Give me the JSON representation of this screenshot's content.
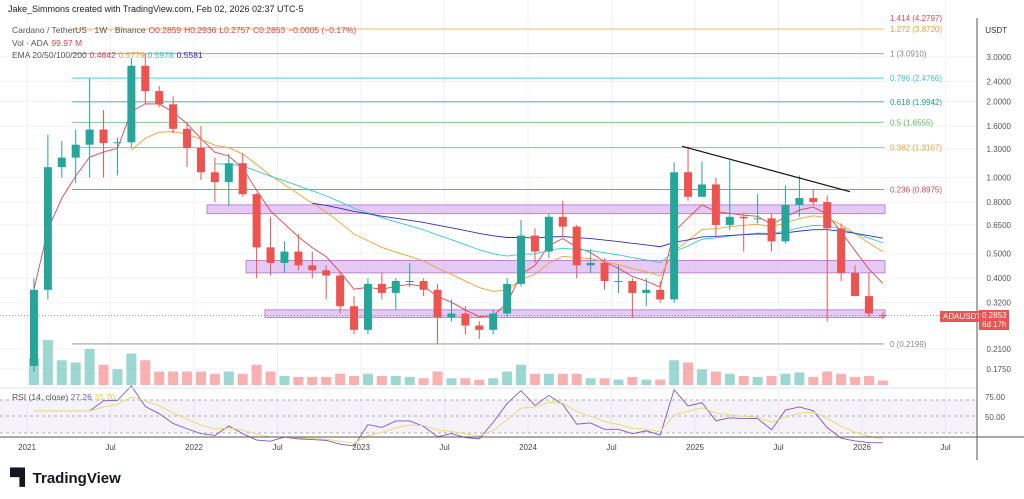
{
  "header": {
    "credit": "Jake_Simmons created with TradingView.com, Feb 02, 2026 02:37 UTC-5"
  },
  "legend": {
    "symbol": "Cardano / TetherUS · 1W · Binance",
    "o": "O0.2859",
    "h": "H0.2936",
    "l": "L0.2757",
    "c": "C0.2853",
    "chg": "−0.0005 (−0.17%)",
    "vol_label": "Vol · ADA",
    "vol_value": "99.97 M",
    "ema_label": "EMA 20/50/100/200",
    "ema20": "0.4642",
    "ema50": "0.5779",
    "ema100": "0.5978",
    "ema200": "0.5581",
    "rsi_label": "RSI (14, close)",
    "rsi_value": "27.26",
    "rsi_ma": "35.70"
  },
  "price_tag": {
    "symbol": "ADAUSDT",
    "price": "0.2853",
    "countdown": "6d 17h"
  },
  "logo": {
    "text": "TradingView"
  },
  "colors": {
    "up": "#26a69a",
    "down": "#ef5350",
    "ema20": "#e0454d",
    "ema50": "#f0a030",
    "ema100": "#37c7d4",
    "ema200": "#2f2fbf",
    "zone": "#d8b4f0",
    "rsi": "#7e57c2"
  },
  "chart_data": {
    "type": "candlestick",
    "interval": "1W (approximated monthly here)",
    "yscale": "log",
    "yunit": "USDT",
    "yticks": [
      "3.0000",
      "2.4000",
      "2.0000",
      "1.6000",
      "1.3000",
      "1.0000",
      "0.8000",
      "0.6500",
      "0.5000",
      "0.4000",
      "0.3200",
      "0.2100",
      "0.1750"
    ],
    "xticks": [
      "2021",
      "Jul",
      "2022",
      "Jul",
      "2023",
      "Jul",
      "2024",
      "Jul",
      "2025",
      "Jul",
      "2026",
      "Jul"
    ],
    "start": "2021-01",
    "ohlc": [
      [
        0.18,
        0.4,
        0.17,
        0.36
      ],
      [
        0.36,
        1.48,
        0.33,
        1.1
      ],
      [
        1.1,
        1.4,
        1.0,
        1.2
      ],
      [
        1.2,
        1.55,
        0.95,
        1.35
      ],
      [
        1.35,
        2.47,
        1.0,
        1.55
      ],
      [
        1.55,
        1.85,
        1.0,
        1.37
      ],
      [
        1.37,
        1.44,
        1.02,
        1.38
      ],
      [
        1.38,
        2.97,
        1.32,
        2.77
      ],
      [
        2.77,
        3.1,
        1.95,
        2.2
      ],
      [
        2.2,
        2.3,
        1.9,
        1.95
      ],
      [
        1.95,
        2.1,
        1.5,
        1.56
      ],
      [
        1.56,
        1.65,
        1.1,
        1.31
      ],
      [
        1.31,
        1.6,
        0.98,
        1.05
      ],
      [
        1.05,
        1.2,
        0.8,
        0.96
      ],
      [
        0.96,
        1.24,
        0.77,
        1.14
      ],
      [
        1.14,
        1.25,
        0.84,
        0.86
      ],
      [
        0.86,
        0.87,
        0.4,
        0.53
      ],
      [
        0.53,
        0.7,
        0.41,
        0.46
      ],
      [
        0.46,
        0.56,
        0.42,
        0.51
      ],
      [
        0.51,
        0.6,
        0.43,
        0.45
      ],
      [
        0.45,
        0.51,
        0.4,
        0.43
      ],
      [
        0.43,
        0.45,
        0.33,
        0.41
      ],
      [
        0.41,
        0.42,
        0.29,
        0.31
      ],
      [
        0.31,
        0.34,
        0.24,
        0.25
      ],
      [
        0.25,
        0.4,
        0.24,
        0.38
      ],
      [
        0.38,
        0.42,
        0.33,
        0.35
      ],
      [
        0.35,
        0.4,
        0.3,
        0.39
      ],
      [
        0.39,
        0.46,
        0.37,
        0.39
      ],
      [
        0.39,
        0.4,
        0.34,
        0.36
      ],
      [
        0.36,
        0.38,
        0.22,
        0.28
      ],
      [
        0.28,
        0.33,
        0.27,
        0.29
      ],
      [
        0.29,
        0.31,
        0.24,
        0.26
      ],
      [
        0.26,
        0.27,
        0.23,
        0.25
      ],
      [
        0.25,
        0.3,
        0.24,
        0.29
      ],
      [
        0.29,
        0.4,
        0.28,
        0.38
      ],
      [
        0.38,
        0.68,
        0.37,
        0.59
      ],
      [
        0.59,
        0.63,
        0.46,
        0.51
      ],
      [
        0.51,
        0.72,
        0.48,
        0.7
      ],
      [
        0.7,
        0.81,
        0.58,
        0.64
      ],
      [
        0.64,
        0.65,
        0.4,
        0.45
      ],
      [
        0.45,
        0.52,
        0.42,
        0.46
      ],
      [
        0.46,
        0.48,
        0.36,
        0.39
      ],
      [
        0.39,
        0.45,
        0.35,
        0.39
      ],
      [
        0.39,
        0.4,
        0.28,
        0.35
      ],
      [
        0.35,
        0.4,
        0.31,
        0.36
      ],
      [
        0.36,
        0.39,
        0.32,
        0.33
      ],
      [
        0.33,
        1.15,
        0.32,
        1.05
      ],
      [
        1.05,
        1.33,
        0.81,
        0.84
      ],
      [
        0.84,
        1.16,
        0.85,
        0.94
      ],
      [
        0.94,
        1.0,
        0.58,
        0.65
      ],
      [
        0.65,
        1.17,
        0.62,
        0.7
      ],
      [
        0.7,
        0.72,
        0.51,
        0.69
      ],
      [
        0.69,
        0.86,
        0.66,
        0.69
      ],
      [
        0.69,
        0.72,
        0.51,
        0.56
      ],
      [
        0.56,
        0.93,
        0.55,
        0.78
      ],
      [
        0.78,
        1.02,
        0.7,
        0.83
      ],
      [
        0.83,
        0.9,
        0.78,
        0.8
      ],
      [
        0.8,
        0.85,
        0.27,
        0.63
      ],
      [
        0.63,
        0.66,
        0.39,
        0.42
      ],
      [
        0.42,
        0.45,
        0.34,
        0.34
      ],
      [
        0.34,
        0.42,
        0.28,
        0.29
      ],
      [
        0.2859,
        0.2936,
        0.2757,
        0.2853
      ]
    ],
    "volume": [
      60,
      100,
      55,
      50,
      80,
      45,
      35,
      70,
      55,
      30,
      30,
      30,
      30,
      25,
      30,
      25,
      45,
      30,
      20,
      18,
      18,
      18,
      25,
      20,
      25,
      20,
      20,
      18,
      15,
      30,
      15,
      15,
      12,
      15,
      30,
      45,
      25,
      25,
      25,
      25,
      15,
      15,
      12,
      18,
      12,
      12,
      55,
      50,
      35,
      30,
      25,
      20,
      18,
      20,
      25,
      28,
      18,
      30,
      25,
      18,
      20,
      10
    ],
    "fib_levels": [
      {
        "ratio": "1.414",
        "price": 4.2797,
        "label": "1.414 (4.2797)",
        "color": "#e0454d"
      },
      {
        "ratio": "1.272",
        "price": 3.872,
        "label": "1.272 (3.8720)",
        "color": "#f0a030"
      },
      {
        "ratio": "1",
        "price": 3.091,
        "label": "1 (3.0910)",
        "color": "#888888"
      },
      {
        "ratio": "0.786",
        "price": 2.4766,
        "label": "0.786 (2.4766)",
        "color": "#37c7d4"
      },
      {
        "ratio": "0.618",
        "price": 1.9942,
        "label": "0.618 (1.9942)",
        "color": "#1f9e8a"
      },
      {
        "ratio": "0.5",
        "price": 1.6555,
        "label": "0.5 (1.6555)",
        "color": "#5cb85c"
      },
      {
        "ratio": "0.382",
        "price": 1.3167,
        "label": "0.382 (1.3167)",
        "color": "#f0a030"
      },
      {
        "ratio": "0.236",
        "price": 0.8975,
        "label": "0.236 (0.8975)",
        "color": "#e0454d"
      },
      {
        "ratio": "0",
        "price": 0.2199,
        "label": "0 (0.2199)",
        "color": "#888888"
      }
    ],
    "zones": [
      [
        0.72,
        0.78
      ],
      [
        0.42,
        0.47
      ],
      [
        0.28,
        0.3
      ]
    ],
    "trendline": [
      [
        "2024-12",
        1.33
      ],
      [
        "2025-10",
        0.88
      ]
    ],
    "rsi_ticks": [
      "75.00",
      "50.00"
    ]
  }
}
